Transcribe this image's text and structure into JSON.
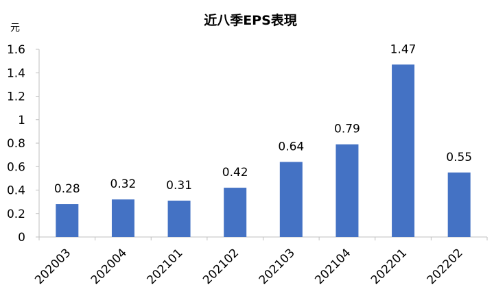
{
  "chart_data": {
    "type": "bar",
    "title": "近八季EPS表現",
    "ylabel": "元",
    "xlabel": "",
    "categories": [
      "202003",
      "202004",
      "202101",
      "202102",
      "202103",
      "202104",
      "202201",
      "202202"
    ],
    "values": [
      0.28,
      0.32,
      0.31,
      0.42,
      0.64,
      0.79,
      1.47,
      0.55
    ],
    "data_labels": [
      "0.28",
      "0.32",
      "0.31",
      "0.42",
      "0.64",
      "0.79",
      "1.47",
      "0.55"
    ],
    "ylim": [
      0,
      1.6
    ],
    "yticks": [
      "0",
      "0.2",
      "0.4",
      "0.6",
      "0.8",
      "1",
      "1.2",
      "1.4",
      "1.6"
    ],
    "bar_color": "#4472C4",
    "grid": false,
    "legend": "none"
  }
}
